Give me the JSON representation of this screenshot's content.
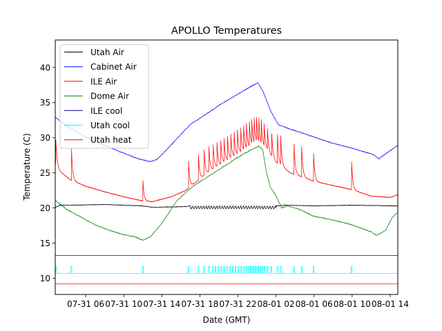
{
  "chart_data": {
    "type": "line",
    "title": "APOLLO Temperatures",
    "xlabel": "Date (GMT)",
    "ylabel": "Temperature (C)",
    "x_units": "hours since 07-31 00:00 GMT",
    "xlim": [
      2.8,
      38.8
    ],
    "ylim": [
      7.7,
      43.9
    ],
    "grid": false,
    "legend_position": "top-left",
    "x_ticks": [
      {
        "value": 6,
        "label": "07-31 06"
      },
      {
        "value": 10,
        "label": "07-31 10"
      },
      {
        "value": 14,
        "label": "07-31 14"
      },
      {
        "value": 18,
        "label": "07-31 18"
      },
      {
        "value": 22,
        "label": "07-31 22"
      },
      {
        "value": 26,
        "label": "08-01 02"
      },
      {
        "value": 30,
        "label": "08-01 06"
      },
      {
        "value": 34,
        "label": "08-01 10"
      },
      {
        "value": 38,
        "label": "08-01 14"
      }
    ],
    "y_ticks": [
      {
        "value": 10,
        "label": "10"
      },
      {
        "value": 15,
        "label": "15"
      },
      {
        "value": 20,
        "label": "20"
      },
      {
        "value": 25,
        "label": "25"
      },
      {
        "value": 30,
        "label": "30"
      },
      {
        "value": 35,
        "label": "35"
      },
      {
        "value": 40,
        "label": "40"
      }
    ],
    "series": [
      {
        "name": "Utah Air",
        "color": "#000000",
        "kind": "baseline",
        "x": [
          2.8,
          3.3,
          4.5,
          8,
          12,
          13,
          16.5,
          17,
          26,
          27,
          30,
          34,
          38.8
        ],
        "y": [
          20.1,
          20.4,
          20.4,
          20.5,
          20.3,
          20.1,
          20.2,
          20.3,
          20.3,
          20.4,
          20.3,
          20.4,
          20.3
        ],
        "oscillation": {
          "from": 17,
          "to": 26,
          "period_hours": 0.28,
          "amplitude": 0.45
        }
      },
      {
        "name": "Cabinet Air",
        "color": "#0000ff",
        "kind": "line",
        "x": [
          2.8,
          4,
          6,
          8,
          10,
          11.5,
          12.8,
          13.5,
          15,
          17,
          18.5,
          20,
          22,
          23.5,
          24.1,
          24.6,
          25.5,
          26.3,
          28,
          30,
          32,
          34,
          36.2,
          36.8,
          37.5,
          38.8
        ],
        "y": [
          32.9,
          31.7,
          30.1,
          28.9,
          27.8,
          27.0,
          26.6,
          26.9,
          29.0,
          31.9,
          33.2,
          34.6,
          36.2,
          37.4,
          37.8,
          36.7,
          33.6,
          31.8,
          31.0,
          30.1,
          29.2,
          28.5,
          27.6,
          27.0,
          27.7,
          28.9
        ]
      },
      {
        "name": "ILE Air",
        "color": "#ff0000",
        "kind": "decay-spikes",
        "baseline_x": [
          2.8,
          3.3,
          4.4,
          6,
          8,
          10,
          12,
          13,
          15,
          16.5,
          17.5,
          19,
          21,
          22.5,
          24,
          25,
          26,
          27.5,
          29,
          30,
          32,
          34,
          36,
          38,
          38.8
        ],
        "baseline_y": [
          26.5,
          25.2,
          24.0,
          23.1,
          22.3,
          21.6,
          21.0,
          20.9,
          21.6,
          22.5,
          23.6,
          25.2,
          26.8,
          28.0,
          29.2,
          28.4,
          26.5,
          25.0,
          24.3,
          23.8,
          23.2,
          22.6,
          21.7,
          21.5,
          21.9
        ],
        "spikes": [
          {
            "x": 2.85,
            "peak": 30.0
          },
          {
            "x": 4.5,
            "peak": 28.8
          },
          {
            "x": 12.0,
            "peak": 24.2
          },
          {
            "x": 16.8,
            "peak": 27.0
          },
          {
            "x": 17.85,
            "peak": 27.6
          },
          {
            "x": 18.45,
            "peak": 28.3
          },
          {
            "x": 18.95,
            "peak": 28.7
          },
          {
            "x": 19.4,
            "peak": 29.0
          },
          {
            "x": 19.8,
            "peak": 29.3
          },
          {
            "x": 20.2,
            "peak": 29.6
          },
          {
            "x": 20.55,
            "peak": 29.9
          },
          {
            "x": 20.9,
            "peak": 30.2
          },
          {
            "x": 21.25,
            "peak": 30.5
          },
          {
            "x": 21.6,
            "peak": 30.8
          },
          {
            "x": 21.95,
            "peak": 31.1
          },
          {
            "x": 22.3,
            "peak": 31.4
          },
          {
            "x": 22.6,
            "peak": 31.7
          },
          {
            "x": 22.9,
            "peak": 32.0
          },
          {
            "x": 23.2,
            "peak": 32.3
          },
          {
            "x": 23.45,
            "peak": 32.6
          },
          {
            "x": 23.7,
            "peak": 32.8
          },
          {
            "x": 23.95,
            "peak": 32.9
          },
          {
            "x": 24.2,
            "peak": 32.8
          },
          {
            "x": 24.45,
            "peak": 32.6
          },
          {
            "x": 24.75,
            "peak": 32.0
          },
          {
            "x": 25.1,
            "peak": 31.3
          },
          {
            "x": 25.55,
            "peak": 30.6
          },
          {
            "x": 26.15,
            "peak": 30.5
          },
          {
            "x": 26.5,
            "peak": 30.3
          },
          {
            "x": 27.9,
            "peak": 29.1
          },
          {
            "x": 28.7,
            "peak": 28.7
          },
          {
            "x": 29.95,
            "peak": 27.8
          },
          {
            "x": 33.95,
            "peak": 26.6
          }
        ]
      },
      {
        "name": "Dome Air",
        "color": "#008000",
        "kind": "line",
        "x": [
          2.8,
          4,
          5.5,
          7,
          8.5,
          10,
          11.2,
          12,
          12.8,
          14,
          15.5,
          16.5,
          17.5,
          19,
          20.5,
          22,
          23,
          24.2,
          24.6,
          25,
          25.4,
          26,
          26.6,
          27.2,
          28.5,
          30,
          32,
          34,
          36,
          36.6,
          37.5,
          38.2,
          38.8
        ],
        "y": [
          21.1,
          19.8,
          18.7,
          17.6,
          16.8,
          16.2,
          15.9,
          15.4,
          15.9,
          17.8,
          20.9,
          22.2,
          23.3,
          24.6,
          25.9,
          27.2,
          28.0,
          28.8,
          28.3,
          25.0,
          23.0,
          21.7,
          20.0,
          20.3,
          19.8,
          18.8,
          18.3,
          17.6,
          16.6,
          16.1,
          16.8,
          18.6,
          19.4
        ]
      },
      {
        "name": "ILE cool",
        "color": "#0000aa",
        "kind": "line",
        "x": [
          2.8,
          38.8
        ],
        "y": [
          13.25,
          13.25
        ]
      },
      {
        "name": "Utah cool",
        "color": "#00ffff",
        "kind": "pulses",
        "low": 10.7,
        "high": 11.7,
        "pulses": [
          2.9,
          4.5,
          12.0,
          16.8,
          17.85,
          18.45,
          18.95,
          19.35,
          19.65,
          19.95,
          20.25,
          20.55,
          20.85,
          21.15,
          21.45,
          21.75,
          22.05,
          22.35,
          22.65,
          22.9,
          23.15,
          23.35,
          23.55,
          23.75,
          23.95,
          24.15,
          24.35,
          24.55,
          24.8,
          25.1,
          25.5,
          26.15,
          26.5,
          27.9,
          28.7,
          29.95,
          33.95
        ]
      },
      {
        "name": "Utah heat",
        "color": "#ff0000",
        "kind": "line",
        "x": [
          2.8,
          38.8
        ],
        "y": [
          9.2,
          9.2
        ]
      }
    ]
  }
}
